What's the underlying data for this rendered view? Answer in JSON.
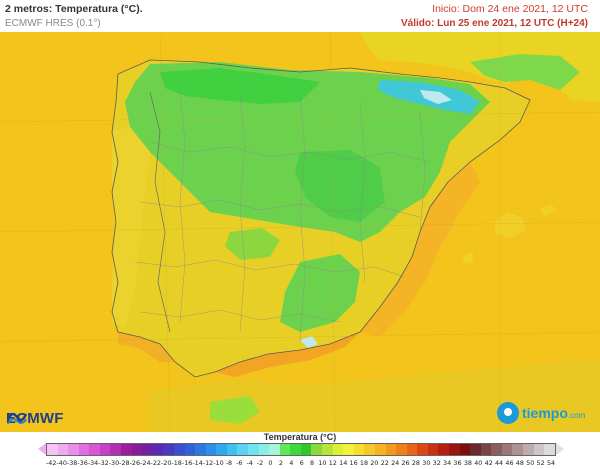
{
  "header": {
    "title": "2 metros: Temperatura (°C).",
    "model": "ECMWF HRES (0.1°)",
    "init": "Inicio: Dom 24 ene 2021, 12 UTC",
    "valid": "Válido: Lun 25 ene 2021, 12 UTC (H+24)"
  },
  "logos": {
    "ecmwf": "ECMWF",
    "tiempo": "tiempo",
    "tiempo_suffix": ".com"
  },
  "legend": {
    "title": "Temperatura (°C)",
    "ticks": [
      "-42",
      "-40",
      "-38",
      "-36",
      "-34",
      "-32",
      "-30",
      "-28",
      "-26",
      "-24",
      "-22",
      "-20",
      "-18",
      "-16",
      "-14",
      "-12",
      "-10",
      "-8",
      "-6",
      "-4",
      "-2",
      "0",
      "2",
      "4",
      "6",
      "8",
      "10",
      "12",
      "14",
      "16",
      "18",
      "20",
      "22",
      "24",
      "26",
      "28",
      "30",
      "32",
      "34",
      "36",
      "38",
      "40",
      "42",
      "44",
      "46",
      "48",
      "50",
      "52",
      "54"
    ],
    "colors": [
      "#f4c4f4",
      "#eeaaee",
      "#e890e8",
      "#e070e0",
      "#d656d6",
      "#c840c8",
      "#b22eb2",
      "#9a209a",
      "#8a1c9a",
      "#7020a0",
      "#5a2ab0",
      "#4a3ac0",
      "#3a4ed0",
      "#2e62d8",
      "#2a78e0",
      "#2a90e8",
      "#30a8ee",
      "#40c0f0",
      "#58d4f0",
      "#70e4ee",
      "#88eee6",
      "#a8f4d8",
      "#5ce85a",
      "#3ada3a",
      "#2cc82c",
      "#8ad83a",
      "#b8e43a",
      "#dcee3a",
      "#f2f23a",
      "#f4de30",
      "#f4c82a",
      "#f4b224",
      "#f29a20",
      "#ee801c",
      "#e86418",
      "#dc4814",
      "#cc3012",
      "#b42010",
      "#98140e",
      "#7c0e0c",
      "#6a2a2a",
      "#7a4444",
      "#8a5e5e",
      "#9a7878",
      "#ac9292",
      "#bcacac",
      "#ccc6c6",
      "#dcdcdc"
    ]
  },
  "map": {
    "region_labels": []
  }
}
